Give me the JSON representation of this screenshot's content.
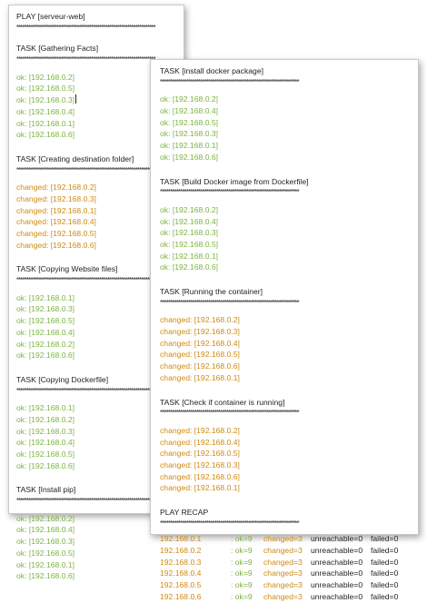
{
  "play_title": "PLAY [serveur-web]",
  "stars": "*********************************************************************",
  "left_tasks": [
    {
      "title": "TASK [Gathering Facts]",
      "status": "ok",
      "hosts": [
        "192.168.0.2",
        "192.168.0.5",
        "192.168.0.3",
        "192.168.0.4",
        "192.168.0.1",
        "192.168.0.6"
      ]
    },
    {
      "title": "TASK [Creating destination folder]",
      "status": "changed",
      "hosts": [
        "192.168.0.2",
        "192.168.0.3",
        "192.168.0.1",
        "192.168.0.4",
        "192.168.0.5",
        "192.168.0.6"
      ]
    },
    {
      "title": "TASK [Copying Website files]",
      "status": "ok",
      "hosts": [
        "192.168.0.1",
        "192.168.0.3",
        "192.168.0.5",
        "192.168.0.4",
        "192.168.0.2",
        "192.168.0.6"
      ]
    },
    {
      "title": "TASK [Copying Dockerfile]",
      "status": "ok",
      "hosts": [
        "192.168.0.1",
        "192.168.0.2",
        "192.168.0.3",
        "192.168.0.4",
        "192.168.0.5",
        "192.168.0.6"
      ]
    },
    {
      "title": "TASK [Install pip]",
      "status": "ok",
      "hosts": [
        "192.168.0.2",
        "192.168.0.4",
        "192.168.0.3",
        "192.168.0.5",
        "192.168.0.1",
        "192.168.0.6"
      ]
    }
  ],
  "right_tasks": [
    {
      "title": "TASK [install docker package]",
      "status": "ok",
      "hosts": [
        "192.168.0.2",
        "192.168.0.4",
        "192.168.0.5",
        "192.168.0.3",
        "192.168.0.1",
        "192.168.0.6"
      ]
    },
    {
      "title": "TASK [Build Docker image from Dockerfile]",
      "status": "ok",
      "hosts": [
        "192.168.0.2",
        "192.168.0.4",
        "192.168.0.3",
        "192.168.0.5",
        "192.168.0.1",
        "192.168.0.6"
      ]
    },
    {
      "title": "TASK [Running the container]",
      "status": "changed",
      "hosts": [
        "192.168.0.2",
        "192.168.0.3",
        "192.168.0.4",
        "192.168.0.5",
        "192.168.0.6",
        "192.168.0.1"
      ]
    },
    {
      "title": "TASK [Check if container is running]",
      "status": "changed",
      "hosts": [
        "192.168.0.2",
        "192.168.0.4",
        "192.168.0.5",
        "192.168.0.3",
        "192.168.0.6",
        "192.168.0.1"
      ]
    }
  ],
  "recap": {
    "title": "PLAY RECAP",
    "rows": [
      {
        "host": "192.168.0.1",
        "ok": ": ok=9",
        "changed": "changed=3",
        "unreachable": "unreachable=0",
        "failed": "failed=0"
      },
      {
        "host": "192.168.0.2",
        "ok": ": ok=9",
        "changed": "changed=3",
        "unreachable": "unreachable=0",
        "failed": "failed=0"
      },
      {
        "host": "192.168.0.3",
        "ok": ": ok=9",
        "changed": "changed=3",
        "unreachable": "unreachable=0",
        "failed": "failed=0"
      },
      {
        "host": "192.168.0.4",
        "ok": ": ok=9",
        "changed": "changed=3",
        "unreachable": "unreachable=0",
        "failed": "failed=0"
      },
      {
        "host": "192.168.0.5",
        "ok": ": ok=9",
        "changed": "changed=3",
        "unreachable": "unreachable=0",
        "failed": "failed=0"
      },
      {
        "host": "192.168.0.6",
        "ok": ": ok=9",
        "changed": "changed=3",
        "unreachable": "unreachable=0",
        "failed": "failed=0"
      }
    ]
  },
  "colors": {
    "ok": "#7cb342",
    "changed": "#d08a12",
    "text": "#1f1f1f"
  }
}
